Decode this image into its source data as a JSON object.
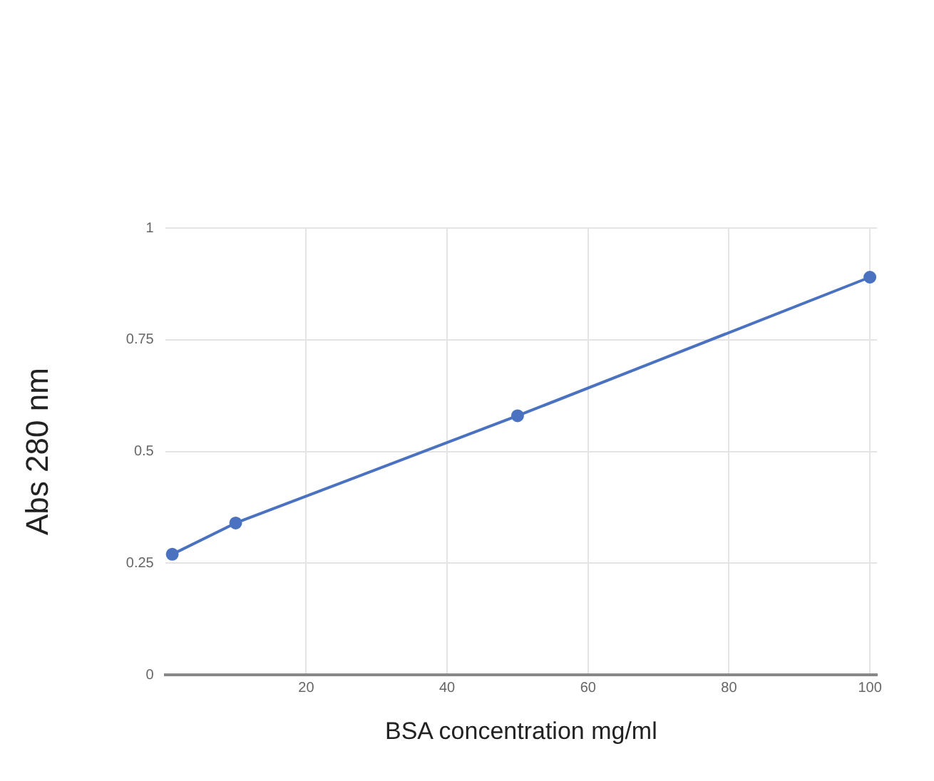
{
  "chart_data": {
    "type": "line",
    "xlabel": "BSA concentration mg/ml",
    "ylabel": "Abs 280 nm",
    "x": [
      1,
      10,
      50,
      100
    ],
    "series": [
      {
        "color": "#4a72c0",
        "values": [
          0.27,
          0.34,
          0.58,
          0.89
        ]
      }
    ],
    "xlim": [
      0,
      101
    ],
    "xticks": [
      20,
      40,
      60,
      80,
      100
    ],
    "ylim": [
      0,
      1
    ],
    "yticks": [
      0,
      0.25,
      0.5,
      0.75,
      1
    ],
    "grid": true,
    "legend": false,
    "marker": "circle",
    "line_style": "solid"
  }
}
